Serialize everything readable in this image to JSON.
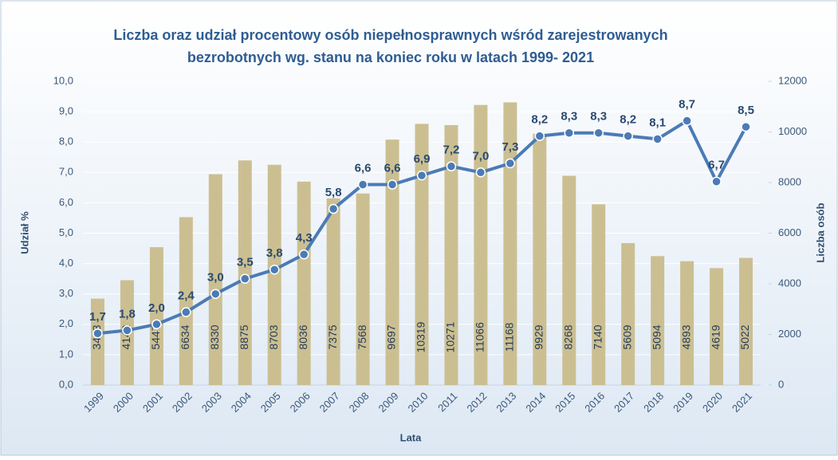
{
  "chart_data": {
    "type": "bar-line",
    "title": [
      "Liczba oraz udział procentowy osób niepełnosprawnych wśród zarejestrowanych",
      "bezrobotnych  wg. stanu na koniec roku w latach 1999- 2021"
    ],
    "x_label": "Lata",
    "y_label": "Udział %",
    "y2_label": "Liczba osób",
    "categories": [
      "1999",
      "2000",
      "2001",
      "2002",
      "2003",
      "2004",
      "2005",
      "2006",
      "2007",
      "2008",
      "2009",
      "2010",
      "2011",
      "2012",
      "2013",
      "2014",
      "2015",
      "2016",
      "2017",
      "2018",
      "2019",
      "2020",
      "2021"
    ],
    "series": [
      {
        "name": "Liczba osób",
        "type": "bar",
        "axis": "y2",
        "color": "#cbbf92",
        "values": [
          3413,
          4142,
          5447,
          6634,
          8330,
          8875,
          8703,
          8036,
          7375,
          7568,
          9697,
          10319,
          10271,
          11066,
          11168,
          9929,
          8268,
          7140,
          5609,
          5094,
          4893,
          4619,
          5022
        ]
      },
      {
        "name": "Udział %",
        "type": "line",
        "axis": "y",
        "color": "#4b7bb6",
        "values": [
          1.7,
          1.8,
          2.0,
          2.4,
          3.0,
          3.5,
          3.8,
          4.3,
          5.8,
          6.6,
          6.6,
          6.9,
          7.2,
          7.0,
          7.3,
          8.2,
          8.3,
          8.3,
          8.2,
          8.1,
          8.7,
          6.7,
          8.5
        ],
        "value_labels": [
          "1,7",
          "1,8",
          "2,0",
          "2,4",
          "3,0",
          "3,5",
          "3,8",
          "4,3",
          "5,8",
          "6,6",
          "6,6",
          "6,9",
          "7,2",
          "7,0",
          "7,3",
          "8,2",
          "8,3",
          "8,3",
          "8,2",
          "8,1",
          "8,7",
          "6,7",
          "8,5"
        ]
      }
    ],
    "ylim": [
      0,
      10
    ],
    "yticks": [
      {
        "value": 0,
        "label": "0,0"
      },
      {
        "value": 1,
        "label": "1,0"
      },
      {
        "value": 2,
        "label": "2,0"
      },
      {
        "value": 3,
        "label": "3,0"
      },
      {
        "value": 4,
        "label": "4,0"
      },
      {
        "value": 5,
        "label": "5,0"
      },
      {
        "value": 6,
        "label": "6,0"
      },
      {
        "value": 7,
        "label": "7,0"
      },
      {
        "value": 8,
        "label": "8,0"
      },
      {
        "value": 9,
        "label": "9,0"
      },
      {
        "value": 10,
        "label": "10,0"
      }
    ],
    "y2lim": [
      0,
      12000
    ],
    "y2ticks": [
      0,
      2000,
      4000,
      6000,
      8000,
      10000,
      12000
    ],
    "grid": true
  }
}
